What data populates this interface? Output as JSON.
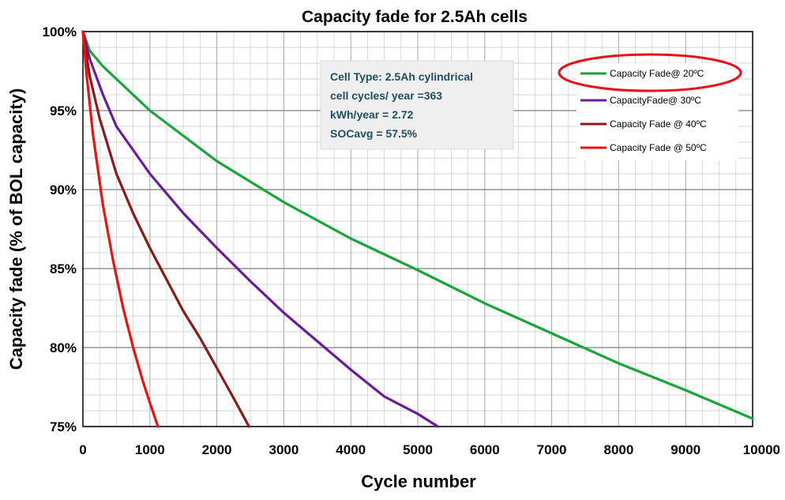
{
  "chart_data": {
    "type": "line",
    "title": "Capacity fade for 2.5Ah cells",
    "xlabel": "Cycle number",
    "ylabel": "Capacity fade (% of BOL capacity)",
    "xlim": [
      0,
      10000
    ],
    "ylim": [
      75,
      100
    ],
    "x_ticks": [
      "0",
      "1000",
      "2000",
      "3000",
      "4000",
      "5000",
      "6000",
      "7000",
      "8000",
      "9000",
      "10000"
    ],
    "y_ticks": [
      "100%",
      "95%",
      "90%",
      "85%",
      "80%",
      "75%"
    ],
    "grid": true,
    "legend_position": "top-right",
    "info_box": [
      "Cell Type: 2.5Ah cylindrical",
      "cell  cycles/ year =363",
      "kWh/year = 2.72",
      "SOCavg = 57.5%"
    ],
    "series": [
      {
        "name": "Capacity Fade@ 20ºC",
        "color": "#1aa539",
        "highlighted": true,
        "x": [
          0,
          100,
          300,
          500,
          1000,
          1500,
          2000,
          3000,
          4000,
          5000,
          6000,
          7000,
          8000,
          9000,
          10000
        ],
        "y": [
          100,
          98.8,
          97.8,
          97.0,
          95.0,
          93.4,
          91.8,
          89.2,
          86.9,
          84.9,
          82.8,
          80.9,
          79.0,
          77.3,
          75.5
        ]
      },
      {
        "name": "CapacityFade@ 30ºC",
        "color": "#6a1b9a",
        "x": [
          0,
          100,
          300,
          500,
          1000,
          1500,
          2000,
          2500,
          3000,
          3500,
          4000,
          4500,
          5000,
          5300
        ],
        "y": [
          100,
          98.3,
          96.0,
          94.0,
          91.0,
          88.5,
          86.3,
          84.2,
          82.2,
          80.4,
          78.6,
          76.9,
          75.8,
          75.0
        ]
      },
      {
        "name": "Capacity Fade @ 40ºC",
        "color": "#8b1a1a",
        "x": [
          0,
          100,
          250,
          500,
          750,
          1000,
          1250,
          1500,
          1750,
          2000,
          2250,
          2480
        ],
        "y": [
          100,
          97.2,
          94.5,
          91.0,
          88.5,
          86.3,
          84.3,
          82.3,
          80.6,
          78.7,
          76.8,
          75.0
        ]
      },
      {
        "name": "Capacity Fade @ 50ºC",
        "color": "#ee1111",
        "x": [
          0,
          50,
          150,
          300,
          450,
          600,
          750,
          900,
          1000,
          1120
        ],
        "y": [
          100,
          97.5,
          93.5,
          89.0,
          85.5,
          82.5,
          80.0,
          77.8,
          76.5,
          75.0
        ]
      }
    ]
  }
}
